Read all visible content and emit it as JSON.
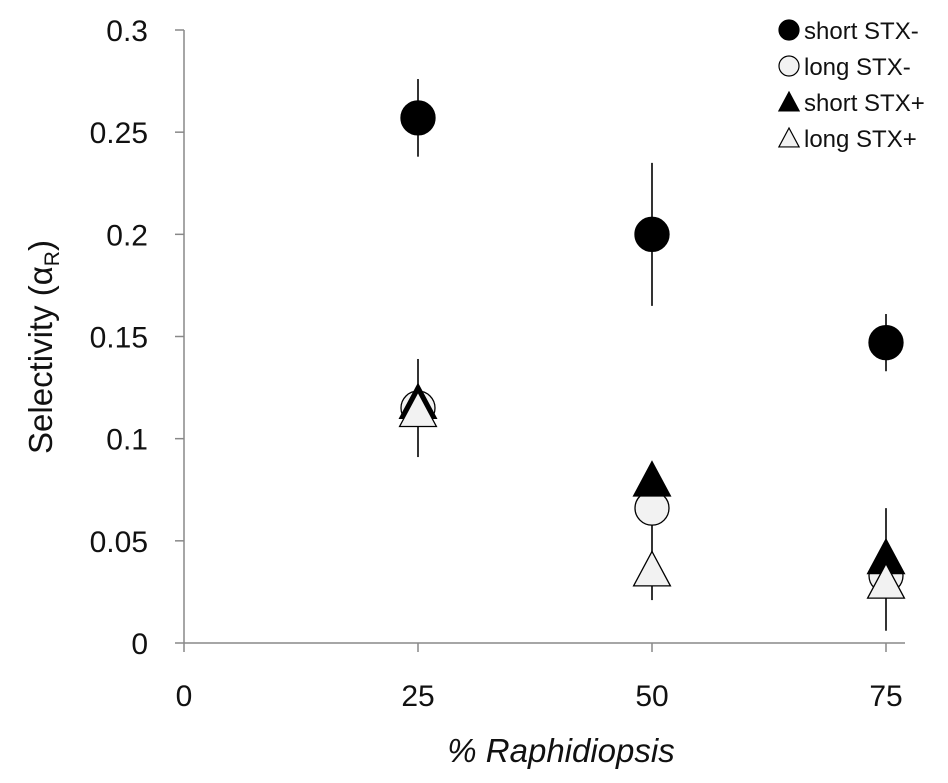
{
  "chart_data": {
    "type": "scatter",
    "title": "",
    "xlabel": "% Raphidiopsis",
    "ylabel_main": "Selectivity (α",
    "ylabel_sub": "R",
    "ylabel_close": ")",
    "xlim": [
      0,
      75
    ],
    "ylim": [
      0,
      0.3
    ],
    "x_ticks": [
      0,
      25,
      50,
      75
    ],
    "x_tick_labels": [
      "0",
      "25",
      "50",
      "75"
    ],
    "y_ticks": [
      0,
      0.05,
      0.1,
      0.15,
      0.2,
      0.25,
      0.3
    ],
    "y_tick_labels": [
      "0",
      "0.05",
      "0.1",
      "0.15",
      "0.2",
      "0.25",
      "0.3"
    ],
    "grid": false,
    "legend_position": "top-right",
    "series": [
      {
        "name": "short STX-",
        "marker": "circle",
        "fill": "#000000",
        "x": [
          25,
          50,
          75
        ],
        "y": [
          0.257,
          0.2,
          0.147
        ],
        "err_low": [
          0.238,
          0.165,
          0.133
        ],
        "err_high": [
          0.276,
          0.235,
          0.161
        ]
      },
      {
        "name": "long STX-",
        "marker": "circle",
        "fill": "#f2f2f2",
        "x": [
          25,
          50,
          75
        ],
        "y": [
          0.115,
          0.066,
          0.033
        ],
        "err_low": [
          0.091,
          0.021,
          0.006
        ],
        "err_high": [
          0.139,
          0.066,
          0.066
        ]
      },
      {
        "name": "short STX+",
        "marker": "triangle",
        "fill": "#000000",
        "x": [
          25,
          50,
          75
        ],
        "y": [
          0.117,
          0.079,
          0.041
        ],
        "err_low": [
          0.117,
          0.079,
          0.041
        ],
        "err_high": [
          0.117,
          0.079,
          0.041
        ]
      },
      {
        "name": "long STX+",
        "marker": "triangle",
        "fill": "#f2f2f2",
        "x": [
          25,
          50,
          75
        ],
        "y": [
          0.113,
          0.035,
          0.029
        ],
        "err_low": [
          0.113,
          0.035,
          0.029
        ],
        "err_high": [
          0.113,
          0.035,
          0.029
        ]
      }
    ]
  }
}
